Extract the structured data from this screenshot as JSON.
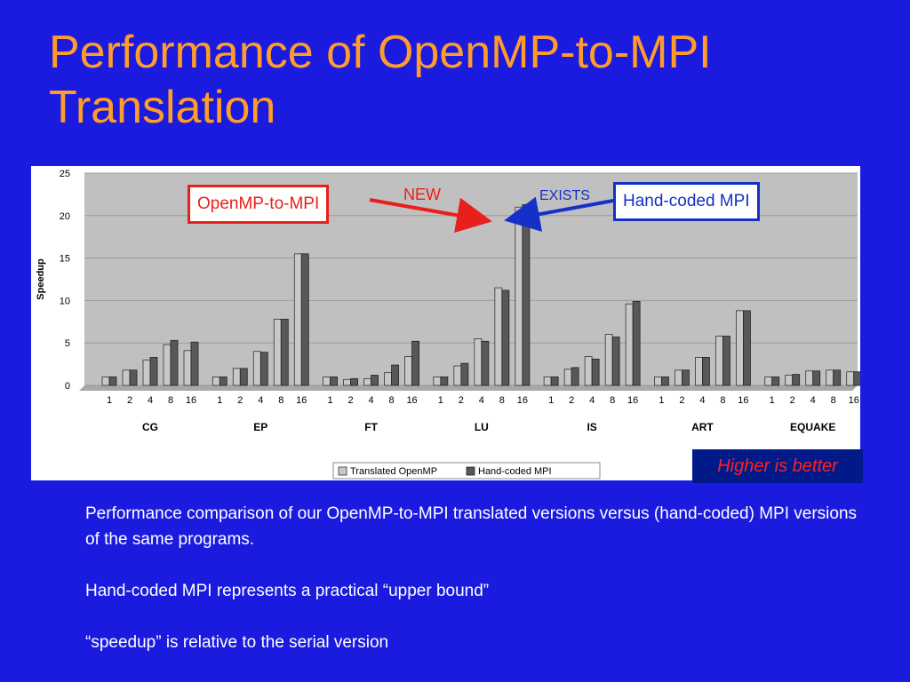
{
  "slide": {
    "title_line1": "Performance of OpenMP-to-MPI",
    "title_line2": "Translation"
  },
  "annotations": {
    "openmp_box": "OpenMP-to-MPI",
    "handcoded_box": "Hand-coded MPI",
    "new_label": "NEW",
    "exists_label": "EXISTS",
    "higher_is_better": "Higher is better"
  },
  "description": {
    "para1": "Performance comparison of our OpenMP-to-MPI translated versions versus (hand-coded) MPI versions of the same programs.",
    "para2": "Hand-coded MPI represents a practical “upper bound”",
    "para3": "“speedup” is relative to the serial version"
  },
  "colors": {
    "background": "#1b1be0",
    "title": "#ff9c2a",
    "translated_bar": "#c8c8c8",
    "handcoded_bar": "#585858",
    "plot_bg": "#c0c0c0",
    "red": "#e8201a",
    "blue": "#1430c8"
  },
  "chart_data": {
    "type": "bar",
    "ylabel": "Speedup",
    "ylim": [
      0,
      25
    ],
    "yticks": [
      0,
      5,
      10,
      15,
      20,
      25
    ],
    "grid": true,
    "legend_position": "bottom",
    "procs": [
      "1",
      "2",
      "4",
      "8",
      "16"
    ],
    "groups": [
      {
        "name": "CG",
        "translated": [
          1.0,
          1.8,
          3.0,
          4.8,
          4.1
        ],
        "handcoded": [
          1.0,
          1.8,
          3.3,
          5.3,
          5.1
        ]
      },
      {
        "name": "EP",
        "translated": [
          1.0,
          2.0,
          4.0,
          7.8,
          15.5
        ],
        "handcoded": [
          1.0,
          2.0,
          3.9,
          7.8,
          15.5
        ]
      },
      {
        "name": "FT",
        "translated": [
          1.0,
          0.7,
          0.8,
          1.5,
          3.4
        ],
        "handcoded": [
          1.0,
          0.8,
          1.2,
          2.4,
          5.2
        ]
      },
      {
        "name": "LU",
        "translated": [
          1.0,
          2.3,
          5.5,
          11.5,
          21.0
        ],
        "handcoded": [
          1.0,
          2.6,
          5.2,
          11.2,
          21.3
        ]
      },
      {
        "name": "IS",
        "translated": [
          1.0,
          1.9,
          3.4,
          6.0,
          9.6
        ],
        "handcoded": [
          1.0,
          2.1,
          3.1,
          5.7,
          9.9
        ]
      },
      {
        "name": "ART",
        "translated": [
          1.0,
          1.8,
          3.3,
          5.8,
          8.8
        ],
        "handcoded": [
          1.0,
          1.8,
          3.3,
          5.8,
          8.8
        ]
      },
      {
        "name": "EQUAKE",
        "translated": [
          1.0,
          1.2,
          1.7,
          1.8,
          1.6
        ],
        "handcoded": [
          1.0,
          1.3,
          1.7,
          1.8,
          1.6
        ]
      }
    ],
    "series": [
      {
        "name": "Translated OpenMP"
      },
      {
        "name": "Hand-coded MPI"
      }
    ]
  }
}
